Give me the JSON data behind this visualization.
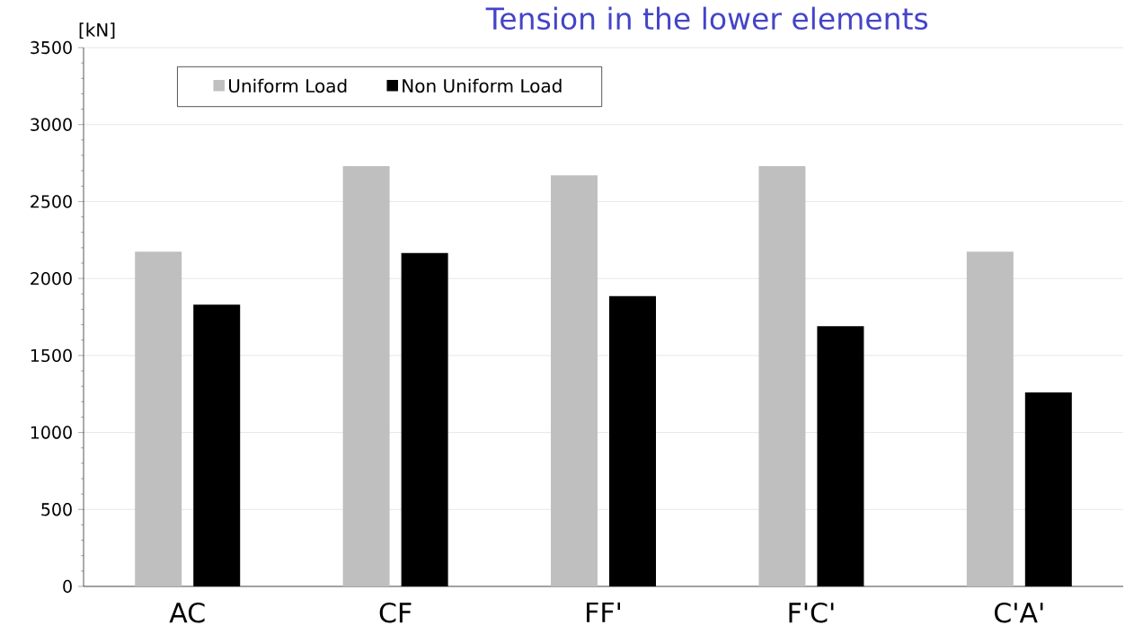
{
  "chart_data": {
    "type": "bar",
    "title": "Tension in the lower elements",
    "ylabel": "[kN]",
    "categories": [
      "AC",
      "CF",
      "FF'",
      "F'C'",
      "C'A'"
    ],
    "series": [
      {
        "name": "Uniform Load",
        "color": "#bfbfbf",
        "values": [
          2175,
          2730,
          2670,
          2730,
          2175
        ]
      },
      {
        "name": "Non Uniform Load",
        "color": "#000000",
        "values": [
          1830,
          2165,
          1885,
          1690,
          1260
        ]
      }
    ],
    "ylim": [
      0,
      3500
    ],
    "yticks": [
      0,
      500,
      1000,
      1500,
      2000,
      2500,
      3000,
      3500
    ],
    "grid": "y",
    "legend": "top left"
  }
}
